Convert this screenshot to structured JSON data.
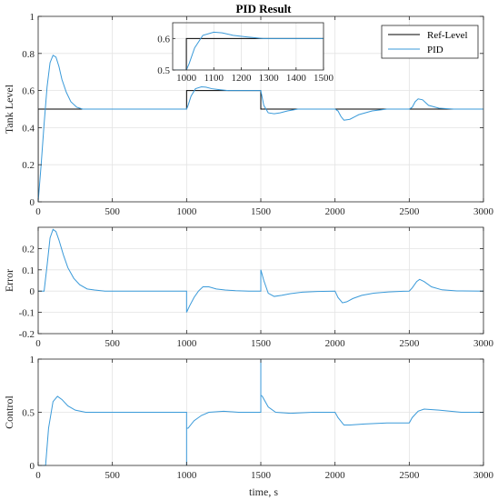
{
  "title": "PID Result",
  "xlabel": "time, s",
  "colors": {
    "ref": "#000000",
    "pid": "#3a9ad9",
    "grid": "#e3e3e3",
    "axis": "#262626"
  },
  "chart_data": [
    {
      "type": "line",
      "name": "tank",
      "title": "PID Result",
      "ylabel": "Tank Level",
      "xlim": [
        0,
        3000
      ],
      "ylim": [
        0,
        1
      ],
      "xticks": [
        0,
        500,
        1000,
        1500,
        2000,
        2500,
        3000
      ],
      "yticks": [
        0,
        0.2,
        0.4,
        0.6,
        0.8,
        1
      ],
      "grid": true,
      "legend": "top-right",
      "series": [
        {
          "name": "Ref-Level",
          "color": "#000000",
          "x": [
            0,
            0,
            1000,
            1000,
            1500,
            1500,
            2000,
            2000,
            2500,
            2500,
            3000
          ],
          "y": [
            0,
            0.5,
            0.5,
            0.6,
            0.6,
            0.5,
            0.5,
            0.5,
            0.5,
            0.5,
            0.5
          ]
        },
        {
          "name": "PID",
          "color": "#3a9ad9",
          "x": [
            0,
            20,
            40,
            60,
            80,
            100,
            120,
            140,
            160,
            190,
            220,
            260,
            300,
            350,
            400,
            500,
            1000,
            1010,
            1030,
            1060,
            1100,
            1130,
            1170,
            1220,
            1280,
            1350,
            1420,
            1500,
            1505,
            1520,
            1550,
            1590,
            1630,
            1680,
            1750,
            1850,
            2000,
            2020,
            2040,
            2060,
            2100,
            2160,
            2250,
            2350,
            2450,
            2500,
            2520,
            2540,
            2560,
            2590,
            2630,
            2700,
            2800,
            2900,
            3000
          ],
          "y": [
            0,
            0.2,
            0.42,
            0.62,
            0.75,
            0.79,
            0.78,
            0.73,
            0.66,
            0.59,
            0.54,
            0.51,
            0.5,
            0.5,
            0.5,
            0.5,
            0.5,
            0.52,
            0.57,
            0.61,
            0.62,
            0.618,
            0.61,
            0.605,
            0.6,
            0.6,
            0.6,
            0.6,
            0.58,
            0.52,
            0.48,
            0.475,
            0.48,
            0.49,
            0.5,
            0.5,
            0.5,
            0.49,
            0.46,
            0.44,
            0.445,
            0.47,
            0.49,
            0.5,
            0.5,
            0.5,
            0.51,
            0.54,
            0.555,
            0.55,
            0.52,
            0.505,
            0.5,
            0.5,
            0.5
          ]
        }
      ],
      "inset": {
        "xlim": [
          950,
          1500
        ],
        "ylim": [
          0.5,
          0.65
        ],
        "xticks": [
          1000,
          1100,
          1200,
          1300,
          1400,
          1500
        ],
        "yticks": [
          0.5,
          0.6
        ]
      }
    },
    {
      "type": "line",
      "name": "error",
      "ylabel": "Error",
      "xlim": [
        0,
        3000
      ],
      "ylim": [
        -0.2,
        0.3
      ],
      "xticks": [
        0,
        500,
        1000,
        1500,
        2000,
        2500,
        3000
      ],
      "yticks": [
        -0.2,
        -0.1,
        0,
        0.1,
        0.2
      ],
      "grid": true,
      "series": [
        {
          "name": "PID",
          "color": "#3a9ad9",
          "x": [
            0,
            40,
            60,
            80,
            100,
            120,
            140,
            170,
            200,
            240,
            280,
            330,
            380,
            450,
            1000,
            1000,
            1020,
            1050,
            1080,
            1110,
            1150,
            1200,
            1260,
            1330,
            1420,
            1500,
            1500,
            1520,
            1550,
            1590,
            1640,
            1700,
            1780,
            1880,
            2000,
            2020,
            2050,
            2080,
            2120,
            2180,
            2260,
            2360,
            2460,
            2500,
            2520,
            2550,
            2570,
            2600,
            2650,
            2720,
            2820,
            3000
          ],
          "y": [
            0,
            0,
            0.12,
            0.25,
            0.29,
            0.28,
            0.24,
            0.17,
            0.11,
            0.06,
            0.03,
            0.01,
            0.005,
            0,
            0,
            -0.1,
            -0.07,
            -0.03,
            0,
            0.02,
            0.02,
            0.01,
            0.005,
            0.002,
            0,
            0,
            0.1,
            0.05,
            -0.01,
            -0.025,
            -0.02,
            -0.012,
            -0.005,
            -0.002,
            0,
            -0.03,
            -0.055,
            -0.05,
            -0.035,
            -0.02,
            -0.01,
            -0.004,
            -0.001,
            0,
            0.015,
            0.045,
            0.055,
            0.045,
            0.02,
            0.006,
            0.001,
            0
          ]
        }
      ]
    },
    {
      "type": "line",
      "name": "control",
      "ylabel": "Control",
      "xlim": [
        0,
        3000
      ],
      "ylim": [
        0,
        1
      ],
      "xticks": [
        0,
        500,
        1000,
        1500,
        2000,
        2500,
        3000
      ],
      "yticks": [
        0,
        0.5,
        1
      ],
      "grid": true,
      "series": [
        {
          "name": "PID",
          "color": "#3a9ad9",
          "x": [
            0,
            50,
            70,
            100,
            130,
            160,
            200,
            250,
            320,
            400,
            500,
            1000,
            1000,
            1000,
            1010,
            1050,
            1100,
            1150,
            1250,
            1350,
            1500,
            1500,
            1500,
            1510,
            1550,
            1600,
            1700,
            1850,
            2000,
            2020,
            2060,
            2100,
            2200,
            2350,
            2500,
            2520,
            2560,
            2600,
            2700,
            2850,
            3000
          ],
          "y": [
            0,
            0,
            0.35,
            0.6,
            0.65,
            0.62,
            0.56,
            0.52,
            0.5,
            0.5,
            0.5,
            0.5,
            0,
            0.35,
            0.35,
            0.42,
            0.47,
            0.5,
            0.51,
            0.5,
            0.5,
            1,
            0.66,
            0.65,
            0.55,
            0.5,
            0.49,
            0.5,
            0.5,
            0.45,
            0.38,
            0.38,
            0.39,
            0.4,
            0.4,
            0.45,
            0.51,
            0.53,
            0.52,
            0.5,
            0.5
          ]
        }
      ]
    }
  ]
}
